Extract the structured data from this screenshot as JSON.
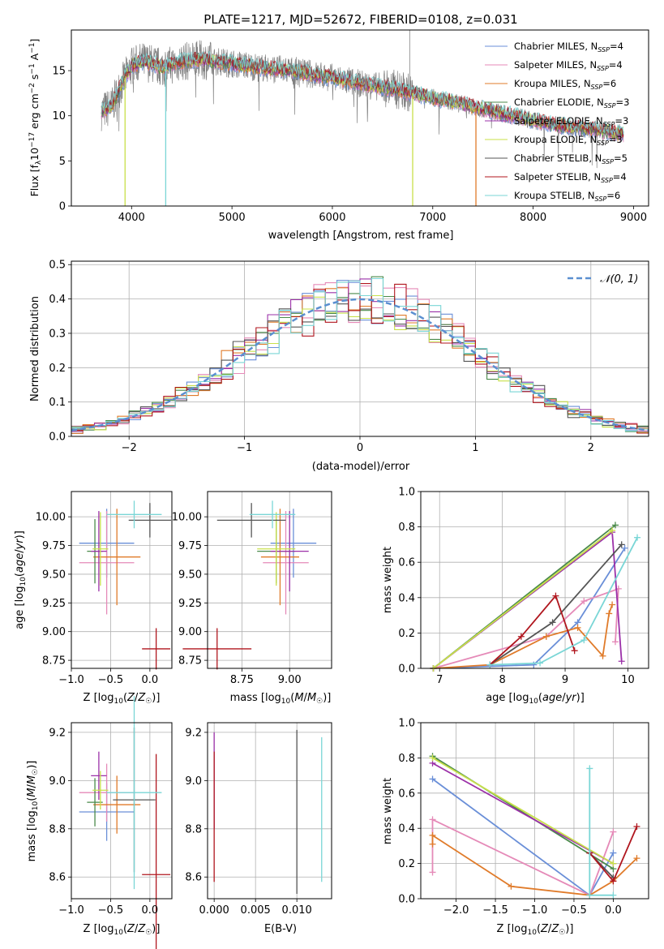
{
  "colors": {
    "chabrier_miles": "#6a8fd8",
    "salpeter_miles": "#e58ab8",
    "kroupa_miles": "#e07b2a",
    "chabrier_elodie": "#4a8a4a",
    "salpeter_elodie": "#9b30a8",
    "kroupa_elodie": "#c8e04a",
    "chabrier_stelib": "#555555",
    "salpeter_stelib": "#b0161e",
    "kroupa_stelib": "#7ad6d6",
    "data": "#808080",
    "normal": "#5b8fd0"
  },
  "chart_data": [
    {
      "type": "line",
      "title": "PLATE=1217, MJD=52672, FIBERID=0108, z=0.031",
      "xlabel": "wavelength [Angstrom, rest frame]",
      "ylabel": "Flux [f_λ 10^-17 erg cm^-2 s^-1 A^-1]",
      "xlim": [
        3400,
        9150
      ],
      "ylim": [
        0,
        19.5
      ],
      "xticks": [
        4000,
        5000,
        6000,
        7000,
        8000,
        9000
      ],
      "yticks": [
        0,
        5,
        10,
        15
      ],
      "legend": "top-right",
      "legend_entries": [
        "Chabrier MILES, N_SSP=4",
        "Salpeter MILES, N_SSP=4",
        "Kroupa MILES, N_SSP=6",
        "Chabrier ELODIE, N_SSP=3",
        "Salpeter ELODIE, N_SSP=3",
        "Kroupa ELODIE, N_SSP=3",
        "Chabrier STELIB, N_SSP=5",
        "Salpeter STELIB, N_SSP=4",
        "Kroupa STELIB, N_SSP=6"
      ],
      "continuum": {
        "x": [
          3700,
          3800,
          3900,
          4000,
          4100,
          4200,
          4300,
          4500,
          4700,
          5000,
          5300,
          5600,
          6000,
          6300,
          6600,
          7000,
          7400,
          7800,
          8200,
          8600,
          8900
        ],
        "y": [
          10.5,
          11.0,
          13.5,
          15.5,
          16.0,
          15.8,
          15.3,
          16.0,
          16.2,
          15.8,
          15.3,
          15.0,
          14.2,
          13.5,
          13.0,
          12.0,
          11.0,
          10.0,
          9.0,
          8.5,
          8.0
        ]
      },
      "dips": [
        {
          "x": 3935,
          "y": 0
        },
        {
          "x": 4340,
          "y": 0
        },
        {
          "x": 6800,
          "y": 0
        },
        {
          "x": 7430,
          "y": 0
        }
      ]
    },
    {
      "type": "line",
      "xlabel": "(data-model)/error",
      "ylabel": "Normed distribution",
      "xlim": [
        -2.5,
        2.5
      ],
      "ylim": [
        0,
        0.51
      ],
      "xticks": [
        -2,
        -1,
        0,
        1,
        2
      ],
      "yticks": [
        0.0,
        0.1,
        0.2,
        0.3,
        0.4,
        0.5
      ],
      "legend": "top-right",
      "legend_entries": [
        "N(0, 1)"
      ],
      "bin_width": 0.1,
      "grid": true
    },
    {
      "type": "scatter",
      "xlabel": "Z [log10(Z/Z☉)]",
      "ylabel": "age [log10(age/yr)]",
      "xlim": [
        -1.0,
        0.28
      ],
      "ylim": [
        8.68,
        10.22
      ],
      "xticks": [
        -1.0,
        -0.5,
        0.0
      ],
      "yticks": [
        8.75,
        9.0,
        9.25,
        9.5,
        9.75,
        10.0
      ],
      "grid": true,
      "points": [
        {
          "series": "chabrier_miles",
          "x": -0.55,
          "y": 9.77,
          "xerr": 0.35,
          "yerr": 0.3
        },
        {
          "series": "salpeter_miles",
          "x": -0.55,
          "y": 9.6,
          "xerr": 0.35,
          "yerr": 0.45
        },
        {
          "series": "kroupa_miles",
          "x": -0.42,
          "y": 9.65,
          "xerr": 0.3,
          "yerr": 0.42
        },
        {
          "series": "chabrier_elodie",
          "x": -0.7,
          "y": 9.7,
          "xerr": 0.1,
          "yerr": 0.28
        },
        {
          "series": "salpeter_elodie",
          "x": -0.65,
          "y": 9.7,
          "xerr": 0.1,
          "yerr": 0.35
        },
        {
          "series": "kroupa_elodie",
          "x": -0.63,
          "y": 9.72,
          "xerr": 0.1,
          "yerr": 0.32
        },
        {
          "series": "chabrier_stelib",
          "x": 0.0,
          "y": 9.97,
          "xerr": 0.27,
          "yerr": 0.15
        },
        {
          "series": "salpeter_stelib",
          "x": 0.08,
          "y": 8.85,
          "xerr": 0.18,
          "yerr": 0.18
        },
        {
          "series": "kroupa_stelib",
          "x": -0.2,
          "y": 10.02,
          "xerr": 0.35,
          "yerr": 0.12
        }
      ]
    },
    {
      "type": "scatter",
      "xlabel": "mass [log10(M/M☉)]",
      "xlim": [
        8.57,
        9.22
      ],
      "ylim": [
        8.68,
        10.22
      ],
      "xticks": [
        8.75,
        9.0
      ],
      "yticks": [
        8.75,
        9.0,
        9.25,
        9.5,
        9.75,
        10.0
      ],
      "grid": true,
      "points": [
        {
          "series": "chabrier_miles",
          "x": 9.02,
          "y": 9.77,
          "xerr": 0.12,
          "yerr": 0.3
        },
        {
          "series": "salpeter_miles",
          "x": 8.98,
          "y": 9.6,
          "xerr": 0.12,
          "yerr": 0.45
        },
        {
          "series": "kroupa_miles",
          "x": 8.95,
          "y": 9.65,
          "xerr": 0.1,
          "yerr": 0.42
        },
        {
          "series": "chabrier_elodie",
          "x": 8.93,
          "y": 9.7,
          "xerr": 0.1,
          "yerr": 0.28
        },
        {
          "series": "salpeter_elodie",
          "x": 9.0,
          "y": 9.7,
          "xerr": 0.1,
          "yerr": 0.35
        },
        {
          "series": "kroupa_elodie",
          "x": 8.93,
          "y": 9.72,
          "xerr": 0.1,
          "yerr": 0.32
        },
        {
          "series": "chabrier_stelib",
          "x": 8.8,
          "y": 9.97,
          "xerr": 0.18,
          "yerr": 0.15
        },
        {
          "series": "salpeter_stelib",
          "x": 8.62,
          "y": 8.85,
          "xerr": 0.18,
          "yerr": 0.18
        },
        {
          "series": "kroupa_stelib",
          "x": 8.91,
          "y": 10.02,
          "xerr": 0.12,
          "yerr": 0.12
        }
      ]
    },
    {
      "type": "line",
      "xlabel": "age [log10(age/yr)]",
      "ylabel": "mass weight",
      "xlim": [
        6.7,
        10.33
      ],
      "ylim": [
        0,
        1.0
      ],
      "xticks": [
        7,
        8,
        9,
        10
      ],
      "yticks": [
        0.0,
        0.2,
        0.4,
        0.6,
        0.8,
        1.0
      ],
      "grid": true,
      "series": [
        {
          "name": "chabrier_miles",
          "points": [
            [
              6.9,
              0.0
            ],
            [
              8.5,
              0.02
            ],
            [
              9.2,
              0.26
            ],
            [
              9.95,
              0.68
            ]
          ]
        },
        {
          "name": "salpeter_miles",
          "points": [
            [
              6.9,
              0.0
            ],
            [
              8.7,
              0.18
            ],
            [
              9.3,
              0.38
            ],
            [
              9.85,
              0.45
            ],
            [
              9.8,
              0.15
            ]
          ]
        },
        {
          "name": "kroupa_miles",
          "points": [
            [
              6.9,
              0.0
            ],
            [
              7.8,
              0.02
            ],
            [
              8.7,
              0.18
            ],
            [
              9.2,
              0.23
            ],
            [
              9.6,
              0.07
            ],
            [
              9.7,
              0.31
            ],
            [
              9.75,
              0.36
            ]
          ]
        },
        {
          "name": "chabrier_elodie",
          "points": [
            [
              6.9,
              0.0
            ],
            [
              9.8,
              0.81
            ]
          ]
        },
        {
          "name": "salpeter_elodie",
          "points": [
            [
              6.9,
              0.0
            ],
            [
              9.75,
              0.77
            ],
            [
              9.9,
              0.04
            ]
          ]
        },
        {
          "name": "kroupa_elodie",
          "points": [
            [
              6.9,
              0.0
            ],
            [
              9.75,
              0.78
            ]
          ]
        },
        {
          "name": "chabrier_stelib",
          "points": [
            [
              7.8,
              0.02
            ],
            [
              8.8,
              0.26
            ],
            [
              9.9,
              0.7
            ]
          ]
        },
        {
          "name": "salpeter_stelib",
          "points": [
            [
              7.8,
              0.02
            ],
            [
              8.3,
              0.18
            ],
            [
              8.85,
              0.41
            ],
            [
              9.15,
              0.1
            ]
          ]
        },
        {
          "name": "kroupa_stelib",
          "points": [
            [
              7.8,
              0.02
            ],
            [
              8.6,
              0.03
            ],
            [
              9.3,
              0.16
            ],
            [
              10.15,
              0.74
            ]
          ]
        }
      ]
    },
    {
      "type": "scatter",
      "xlabel": "Z [log10(Z/Z☉)]",
      "ylabel": "mass [log10(M/M☉)]",
      "xlim": [
        -1.0,
        0.28
      ],
      "ylim": [
        8.51,
        9.24
      ],
      "xticks": [
        -1.0,
        -0.5,
        0.0
      ],
      "yticks": [
        8.6,
        8.8,
        9.0,
        9.2
      ],
      "grid": true,
      "points": [
        {
          "series": "chabrier_miles",
          "x": -0.55,
          "y": 8.87,
          "xerr": 0.35,
          "yerr": 0.12
        },
        {
          "series": "salpeter_miles",
          "x": -0.55,
          "y": 8.95,
          "xerr": 0.35,
          "yerr": 0.12
        },
        {
          "series": "kroupa_miles",
          "x": -0.42,
          "y": 8.9,
          "xerr": 0.3,
          "yerr": 0.12
        },
        {
          "series": "chabrier_elodie",
          "x": -0.7,
          "y": 8.91,
          "xerr": 0.1,
          "yerr": 0.1
        },
        {
          "series": "salpeter_elodie",
          "x": -0.65,
          "y": 9.02,
          "xerr": 0.1,
          "yerr": 0.1
        },
        {
          "series": "kroupa_elodie",
          "x": -0.63,
          "y": 8.96,
          "xerr": 0.1,
          "yerr": 0.08
        },
        {
          "series": "chabrier_stelib",
          "x": -0.2,
          "y": 8.92,
          "xerr": 0.27,
          "yerr": 0.3
        },
        {
          "series": "salpeter_stelib",
          "x": 0.08,
          "y": 8.61,
          "xerr": 0.18,
          "yerr": 0.5
        },
        {
          "series": "kroupa_stelib",
          "x": -0.2,
          "y": 8.95,
          "xerr": 0.35,
          "yerr": 0.4
        }
      ]
    },
    {
      "type": "scatter",
      "xlabel": "E(B-V)",
      "xlim": [
        -0.0008,
        0.0142
      ],
      "ylim": [
        8.51,
        9.24
      ],
      "xticks": [
        0.0,
        0.005,
        0.01
      ],
      "xticklabels": [
        "0.000",
        "0.005",
        "0.010"
      ],
      "yticks": [
        8.6,
        8.8,
        9.0,
        9.2
      ],
      "grid": true,
      "points": [
        {
          "series": "salpeter_elodie",
          "x": 0.0,
          "y": 9.0,
          "yerr": 0.2
        },
        {
          "series": "salpeter_stelib",
          "x": 0.0,
          "y": 8.85,
          "yerr": 0.27
        },
        {
          "series": "chabrier_stelib",
          "x": 0.01,
          "y": 8.87,
          "yerr": 0.34
        },
        {
          "series": "kroupa_stelib",
          "x": 0.013,
          "y": 8.88,
          "yerr": 0.3
        }
      ]
    },
    {
      "type": "line",
      "xlabel": "Z [log10(Z/Z☉)]",
      "ylabel": "mass weight",
      "xlim": [
        -2.45,
        0.45
      ],
      "ylim": [
        0,
        1.0
      ],
      "xticks": [
        -2.0,
        -1.5,
        -1.0,
        -0.5,
        0.0
      ],
      "yticks": [
        0.0,
        0.2,
        0.4,
        0.6,
        0.8,
        1.0
      ],
      "grid": true,
      "series": [
        {
          "name": "chabrier_miles",
          "points": [
            [
              -2.3,
              0.68
            ],
            [
              -0.3,
              0.02
            ],
            [
              0.0,
              0.26
            ]
          ]
        },
        {
          "name": "salpeter_miles",
          "points": [
            [
              -2.3,
              0.15
            ],
            [
              -2.3,
              0.45
            ],
            [
              -0.3,
              0.02
            ],
            [
              0.0,
              0.38
            ]
          ]
        },
        {
          "name": "kroupa_miles",
          "points": [
            [
              -2.3,
              0.31
            ],
            [
              -2.3,
              0.36
            ],
            [
              -1.3,
              0.07
            ],
            [
              -0.3,
              0.02
            ],
            [
              0.0,
              0.1
            ],
            [
              0.3,
              0.23
            ]
          ]
        },
        {
          "name": "chabrier_elodie",
          "points": [
            [
              -2.3,
              0.81
            ],
            [
              0.0,
              0.17
            ]
          ]
        },
        {
          "name": "salpeter_elodie",
          "points": [
            [
              -2.3,
              0.77
            ],
            [
              0.0,
              0.2
            ]
          ]
        },
        {
          "name": "kroupa_elodie",
          "points": [
            [
              -2.3,
              0.8
            ],
            [
              0.0,
              0.2
            ]
          ]
        },
        {
          "name": "chabrier_stelib",
          "points": [
            [
              -0.3,
              0.26
            ],
            [
              0.0,
              0.12
            ]
          ]
        },
        {
          "name": "salpeter_stelib",
          "points": [
            [
              -0.3,
              0.26
            ],
            [
              0.0,
              0.1
            ],
            [
              0.3,
              0.41
            ]
          ]
        },
        {
          "name": "kroupa_stelib",
          "points": [
            [
              -0.3,
              0.74
            ],
            [
              -0.3,
              0.02
            ],
            [
              0.0,
              0.02
            ]
          ]
        }
      ]
    }
  ]
}
